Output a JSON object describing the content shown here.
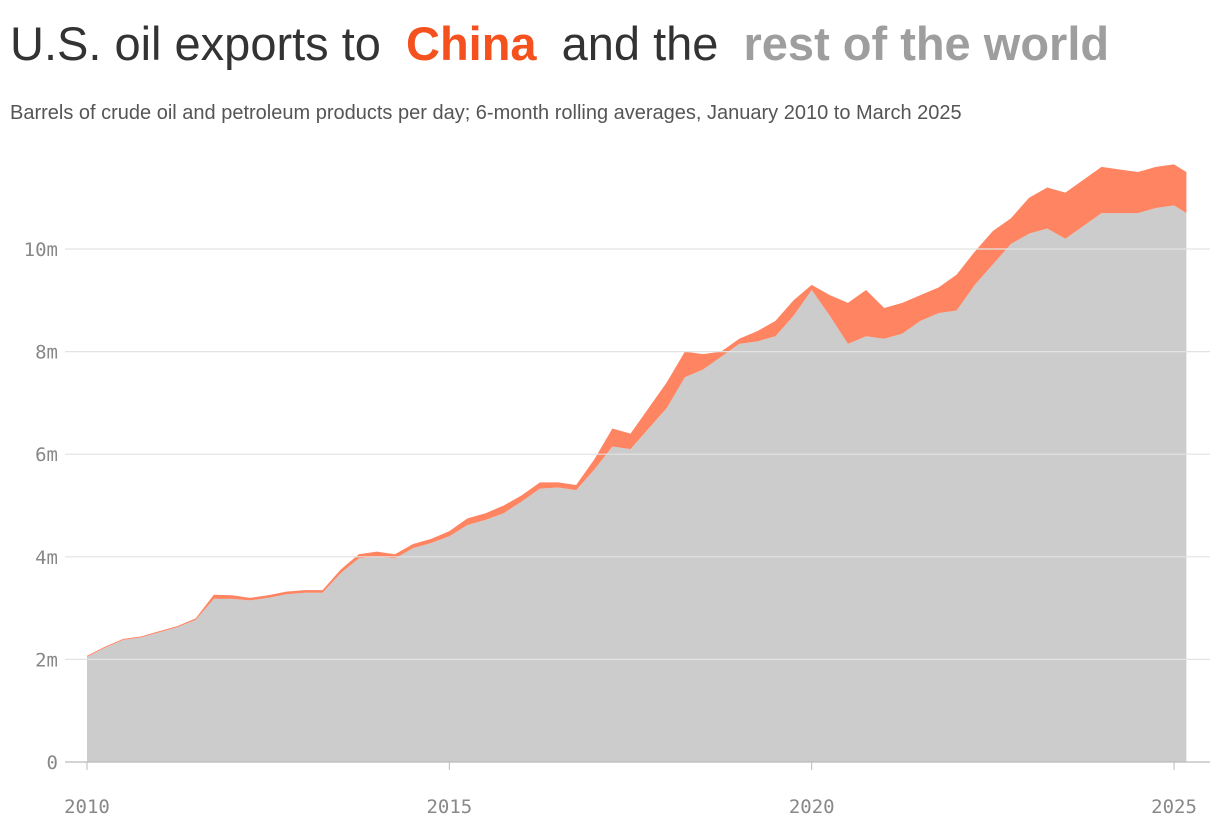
{
  "chart_data": {
    "type": "stacked_area",
    "title_parts": [
      "U.S. oil exports to",
      "and the"
    ],
    "subtitle": "Barrels of crude oil and petroleum products per day; 6-month rolling averages, January 2010 to March 2025",
    "x": [
      2010.0,
      2010.25,
      2010.5,
      2010.75,
      2011.0,
      2011.25,
      2011.5,
      2011.75,
      2012.0,
      2012.25,
      2012.5,
      2012.75,
      2013.0,
      2013.25,
      2013.5,
      2013.75,
      2014.0,
      2014.25,
      2014.5,
      2014.75,
      2015.0,
      2015.25,
      2015.5,
      2015.75,
      2016.0,
      2016.25,
      2016.5,
      2016.75,
      2017.0,
      2017.25,
      2017.5,
      2017.75,
      2018.0,
      2018.25,
      2018.5,
      2018.75,
      2019.0,
      2019.25,
      2019.5,
      2019.75,
      2020.0,
      2020.25,
      2020.5,
      2020.75,
      2021.0,
      2021.25,
      2021.5,
      2021.75,
      2022.0,
      2022.25,
      2022.5,
      2022.75,
      2023.0,
      2023.25,
      2023.5,
      2023.75,
      2024.0,
      2024.25,
      2024.5,
      2024.75,
      2025.0,
      2025.17
    ],
    "series": [
      {
        "name": "rest of the world",
        "color": "#cccccc",
        "text_color": "#9e9e9e",
        "values": [
          2050000,
          2230000,
          2380000,
          2430000,
          2530000,
          2630000,
          2770000,
          3180000,
          3180000,
          3150000,
          3200000,
          3270000,
          3300000,
          3300000,
          3680000,
          3970000,
          4000000,
          3970000,
          4170000,
          4270000,
          4400000,
          4620000,
          4720000,
          4850000,
          5080000,
          5330000,
          5350000,
          5300000,
          5700000,
          6150000,
          6100000,
          6500000,
          6900000,
          7500000,
          7650000,
          7900000,
          8150000,
          8200000,
          8300000,
          8700000,
          9200000,
          8700000,
          8150000,
          8300000,
          8250000,
          8350000,
          8600000,
          8750000,
          8800000,
          9300000,
          9700000,
          10100000,
          10300000,
          10400000,
          10200000,
          10450000,
          10700000,
          10700000,
          10700000,
          10800000,
          10850000,
          10700000
        ]
      },
      {
        "name": "China",
        "color": "#ff8462",
        "text_color": "#f4511e",
        "values": [
          20000,
          20000,
          20000,
          20000,
          20000,
          20000,
          30000,
          80000,
          70000,
          50000,
          50000,
          50000,
          50000,
          50000,
          70000,
          80000,
          100000,
          80000,
          80000,
          80000,
          100000,
          130000,
          130000,
          150000,
          120000,
          120000,
          100000,
          100000,
          200000,
          350000,
          300000,
          400000,
          500000,
          500000,
          300000,
          100000,
          100000,
          200000,
          300000,
          300000,
          100000,
          400000,
          800000,
          900000,
          600000,
          600000,
          500000,
          500000,
          700000,
          650000,
          650000,
          500000,
          700000,
          800000,
          900000,
          900000,
          900000,
          850000,
          800000,
          800000,
          800000,
          800000
        ]
      }
    ],
    "xlim": [
      2010,
      2025.2
    ],
    "xticks": [
      2010,
      2015,
      2020,
      2025
    ],
    "ylim": [
      0,
      11700000
    ],
    "yticks": [
      0,
      {
        "value": 2000000,
        "label": "2m"
      },
      {
        "value": 4000000,
        "label": "4m"
      },
      {
        "value": 6000000,
        "label": "6m"
      },
      {
        "value": 8000000,
        "label": "8m"
      },
      {
        "value": 10000000,
        "label": "10m"
      }
    ],
    "grid": true
  }
}
